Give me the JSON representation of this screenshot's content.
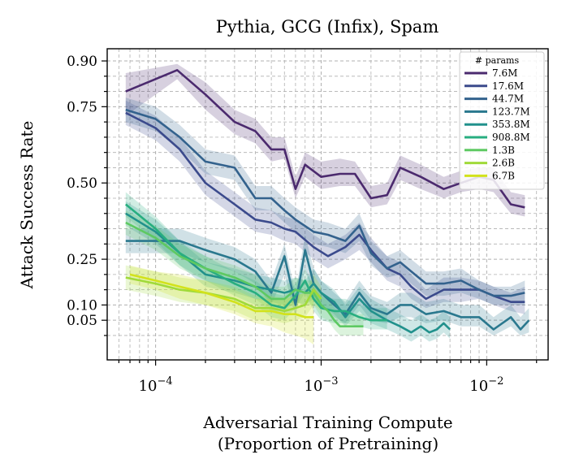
{
  "chart_data": {
    "type": "line",
    "title": "Pythia, GCG (Infix), Spam",
    "xlabel": "Adversarial Training Compute",
    "xlabel2": "(Proportion of Pretraining)",
    "ylabel": "Attack Success Rate",
    "xscale": "log",
    "xlim": [
      5.1e-05,
      0.0235
    ],
    "ylim": [
      -0.08,
      0.94
    ],
    "x_ticks": [
      {
        "value": 0.0001,
        "base": "10",
        "exp": "−4"
      },
      {
        "value": 0.001,
        "base": "10",
        "exp": "−3"
      },
      {
        "value": 0.01,
        "base": "10",
        "exp": "−2"
      }
    ],
    "y_ticks": [
      {
        "value": 0.05,
        "label": "0.05"
      },
      {
        "value": 0.1,
        "label": "0.10"
      },
      {
        "value": 0.25,
        "label": "0.25"
      },
      {
        "value": 0.5,
        "label": "0.50"
      },
      {
        "value": 0.75,
        "label": "0.75"
      },
      {
        "value": 0.9,
        "label": "0.90"
      }
    ],
    "grid": true,
    "legend": {
      "title": "# params",
      "position": "top-right"
    },
    "series": [
      {
        "name": "7.6M",
        "color": "#4b2a6e",
        "x": [
          6.6e-05,
          0.000135,
          0.0002,
          0.0003,
          0.0004,
          0.0005,
          0.0006,
          0.0007,
          0.0008,
          0.001,
          0.0013,
          0.0016,
          0.002,
          0.0025,
          0.003,
          0.004,
          0.0055,
          0.007,
          0.009,
          0.011,
          0.014,
          0.017
        ],
        "y": [
          0.8,
          0.87,
          0.79,
          0.7,
          0.67,
          0.61,
          0.61,
          0.48,
          0.56,
          0.52,
          0.53,
          0.53,
          0.45,
          0.46,
          0.55,
          0.52,
          0.48,
          0.5,
          0.52,
          0.51,
          0.43,
          0.42
        ],
        "lo": [
          0.72,
          0.84,
          0.74,
          0.66,
          0.63,
          0.57,
          0.58,
          0.45,
          0.52,
          0.48,
          0.49,
          0.49,
          0.42,
          0.43,
          0.51,
          0.48,
          0.45,
          0.47,
          0.48,
          0.47,
          0.4,
          0.39
        ],
        "hi": [
          0.86,
          0.89,
          0.83,
          0.74,
          0.71,
          0.65,
          0.65,
          0.52,
          0.6,
          0.57,
          0.58,
          0.57,
          0.49,
          0.5,
          0.59,
          0.56,
          0.52,
          0.54,
          0.55,
          0.55,
          0.47,
          0.46
        ]
      },
      {
        "name": "17.6M",
        "color": "#3b4a8c",
        "x": [
          6.6e-05,
          0.0001,
          0.00014,
          0.0002,
          0.0003,
          0.0004,
          0.0005,
          0.0006,
          0.0007,
          0.0009,
          0.0011,
          0.0014,
          0.0017,
          0.002,
          0.0025,
          0.003,
          0.0035,
          0.0043,
          0.0055,
          0.007,
          0.009,
          0.011,
          0.014,
          0.017
        ],
        "y": [
          0.73,
          0.68,
          0.61,
          0.5,
          0.43,
          0.38,
          0.37,
          0.35,
          0.34,
          0.29,
          0.26,
          0.29,
          0.33,
          0.28,
          0.22,
          0.2,
          0.16,
          0.12,
          0.15,
          0.15,
          0.15,
          0.13,
          0.11,
          0.11
        ],
        "lo": [
          0.69,
          0.64,
          0.57,
          0.46,
          0.39,
          0.34,
          0.33,
          0.31,
          0.3,
          0.25,
          0.22,
          0.25,
          0.28,
          0.24,
          0.18,
          0.16,
          0.12,
          0.09,
          0.11,
          0.11,
          0.12,
          0.1,
          0.08,
          0.07
        ],
        "hi": [
          0.77,
          0.72,
          0.65,
          0.54,
          0.47,
          0.42,
          0.41,
          0.39,
          0.38,
          0.33,
          0.3,
          0.33,
          0.37,
          0.32,
          0.26,
          0.24,
          0.2,
          0.15,
          0.19,
          0.19,
          0.18,
          0.16,
          0.14,
          0.16
        ]
      },
      {
        "name": "44.7M",
        "color": "#33628d",
        "x": [
          6.6e-05,
          0.0001,
          0.00014,
          0.0002,
          0.0003,
          0.0004,
          0.0005,
          0.0006,
          0.0007,
          0.0009,
          0.0011,
          0.0014,
          0.0017,
          0.002,
          0.0025,
          0.003,
          0.0035,
          0.0043,
          0.0055,
          0.007,
          0.009,
          0.011,
          0.014,
          0.017
        ],
        "y": [
          0.74,
          0.71,
          0.65,
          0.57,
          0.55,
          0.45,
          0.45,
          0.41,
          0.38,
          0.34,
          0.33,
          0.31,
          0.36,
          0.27,
          0.22,
          0.24,
          0.21,
          0.17,
          0.17,
          0.18,
          0.15,
          0.13,
          0.13,
          0.14
        ],
        "lo": [
          0.7,
          0.67,
          0.61,
          0.53,
          0.51,
          0.41,
          0.41,
          0.37,
          0.34,
          0.3,
          0.29,
          0.27,
          0.31,
          0.23,
          0.19,
          0.2,
          0.17,
          0.13,
          0.13,
          0.14,
          0.12,
          0.1,
          0.1,
          0.1
        ],
        "hi": [
          0.78,
          0.75,
          0.69,
          0.61,
          0.59,
          0.49,
          0.49,
          0.45,
          0.42,
          0.38,
          0.37,
          0.35,
          0.4,
          0.31,
          0.26,
          0.28,
          0.25,
          0.21,
          0.21,
          0.22,
          0.18,
          0.16,
          0.16,
          0.18
        ]
      },
      {
        "name": "123.7M",
        "color": "#2a788e",
        "x": [
          6.6e-05,
          0.0001,
          0.00014,
          0.0002,
          0.0003,
          0.0004,
          0.0005,
          0.0006,
          0.0007,
          0.0008,
          0.0009,
          0.001,
          0.0012,
          0.0014,
          0.0017,
          0.002,
          0.0025,
          0.003,
          0.0035,
          0.0043,
          0.0055,
          0.007,
          0.009,
          0.011,
          0.014,
          0.016,
          0.018
        ],
        "y": [
          0.31,
          0.31,
          0.31,
          0.28,
          0.25,
          0.21,
          0.14,
          0.26,
          0.1,
          0.28,
          0.17,
          0.14,
          0.1,
          0.07,
          0.14,
          0.09,
          0.07,
          0.1,
          0.1,
          0.07,
          0.08,
          0.06,
          0.06,
          0.02,
          0.06,
          0.02,
          0.05
        ],
        "lo": [
          0.27,
          0.27,
          0.27,
          0.24,
          0.21,
          0.17,
          0.1,
          0.2,
          0.06,
          0.22,
          0.12,
          0.1,
          0.06,
          0.04,
          0.1,
          0.05,
          0.04,
          0.06,
          0.06,
          0.04,
          0.05,
          0.03,
          0.03,
          0.0,
          0.03,
          0.0,
          0.01
        ],
        "hi": [
          0.35,
          0.35,
          0.35,
          0.32,
          0.29,
          0.25,
          0.18,
          0.3,
          0.14,
          0.33,
          0.22,
          0.18,
          0.14,
          0.11,
          0.18,
          0.13,
          0.11,
          0.14,
          0.14,
          0.11,
          0.12,
          0.1,
          0.1,
          0.06,
          0.1,
          0.06,
          0.09
        ]
      },
      {
        "name": "353.8M",
        "color": "#21918c",
        "x": [
          6.6e-05,
          0.0001,
          0.00014,
          0.0002,
          0.0003,
          0.0004,
          0.0005,
          0.0006,
          0.0007,
          0.0008,
          0.0009,
          0.001,
          0.0012,
          0.0014,
          0.0017,
          0.002,
          0.0025,
          0.003,
          0.0035,
          0.004,
          0.0045,
          0.005,
          0.0055,
          0.006
        ],
        "y": [
          0.4,
          0.34,
          0.27,
          0.2,
          0.18,
          0.16,
          0.15,
          0.14,
          0.15,
          0.14,
          0.17,
          0.14,
          0.11,
          0.06,
          0.12,
          0.08,
          0.05,
          0.03,
          0.01,
          0.03,
          0.01,
          0.02,
          0.04,
          0.02
        ],
        "lo": [
          0.36,
          0.3,
          0.23,
          0.16,
          0.14,
          0.12,
          0.11,
          0.1,
          0.11,
          0.1,
          0.12,
          0.1,
          0.07,
          0.03,
          0.08,
          0.04,
          0.02,
          0.0,
          -0.02,
          0.0,
          -0.02,
          -0.01,
          0.01,
          -0.01
        ],
        "hi": [
          0.44,
          0.38,
          0.31,
          0.24,
          0.22,
          0.2,
          0.19,
          0.18,
          0.19,
          0.18,
          0.22,
          0.18,
          0.15,
          0.1,
          0.16,
          0.12,
          0.09,
          0.07,
          0.05,
          0.07,
          0.05,
          0.06,
          0.08,
          0.06
        ]
      },
      {
        "name": "908.8M",
        "color": "#28ae80",
        "x": [
          6.6e-05,
          0.0001,
          0.00014,
          0.0002,
          0.0003,
          0.0004,
          0.0005,
          0.0006,
          0.0007,
          0.0008,
          0.0009,
          0.001,
          0.0012,
          0.0014,
          0.0017,
          0.002,
          0.0025
        ],
        "y": [
          0.43,
          0.35,
          0.27,
          0.22,
          0.17,
          0.14,
          0.1,
          0.09,
          0.13,
          0.18,
          0.12,
          0.09,
          0.08,
          0.08,
          0.06,
          0.05,
          0.05
        ],
        "lo": [
          0.39,
          0.31,
          0.23,
          0.18,
          0.13,
          0.1,
          0.06,
          0.05,
          0.09,
          0.14,
          0.08,
          0.05,
          0.04,
          0.04,
          0.03,
          0.02,
          0.02
        ],
        "hi": [
          0.47,
          0.39,
          0.31,
          0.26,
          0.21,
          0.18,
          0.14,
          0.13,
          0.17,
          0.22,
          0.16,
          0.13,
          0.12,
          0.12,
          0.1,
          0.09,
          0.09
        ]
      },
      {
        "name": "1.3B",
        "color": "#5ec962",
        "x": [
          6.6e-05,
          0.0001,
          0.00014,
          0.0002,
          0.0003,
          0.0004,
          0.0005,
          0.0006,
          0.0007,
          0.0008,
          0.0009,
          0.001,
          0.0011,
          0.0012,
          0.0013,
          0.0015,
          0.0018
        ],
        "y": [
          0.37,
          0.32,
          0.26,
          0.22,
          0.19,
          0.16,
          0.12,
          0.12,
          0.15,
          0.14,
          0.14,
          0.1,
          0.08,
          0.05,
          0.03,
          0.03,
          0.03
        ],
        "lo": [
          0.33,
          0.28,
          0.22,
          0.18,
          0.15,
          0.12,
          0.08,
          0.08,
          0.11,
          0.1,
          0.1,
          0.06,
          0.05,
          0.02,
          0.0,
          0.0,
          0.0
        ],
        "hi": [
          0.41,
          0.36,
          0.3,
          0.26,
          0.23,
          0.2,
          0.16,
          0.16,
          0.19,
          0.18,
          0.18,
          0.14,
          0.12,
          0.09,
          0.07,
          0.07,
          0.07
        ]
      },
      {
        "name": "2.6B",
        "color": "#a0da39",
        "x": [
          6.6e-05,
          0.0001,
          0.00014,
          0.0002,
          0.0003,
          0.0004,
          0.0005,
          0.0006,
          0.0007,
          0.0008,
          0.0009,
          0.001
        ],
        "y": [
          0.19,
          0.17,
          0.15,
          0.14,
          0.12,
          0.09,
          0.09,
          0.08,
          0.09,
          0.1,
          0.15,
          0.12
        ],
        "lo": [
          0.15,
          0.13,
          0.11,
          0.1,
          0.08,
          0.05,
          0.05,
          0.04,
          0.05,
          0.06,
          0.1,
          0.08
        ],
        "hi": [
          0.23,
          0.21,
          0.19,
          0.18,
          0.16,
          0.13,
          0.13,
          0.12,
          0.13,
          0.14,
          0.2,
          0.16
        ]
      },
      {
        "name": "6.7B",
        "color": "#d2e21b",
        "x": [
          7e-05,
          0.0001,
          0.00014,
          0.0002,
          0.0003,
          0.0004,
          0.0005,
          0.0006,
          0.0007,
          0.0008,
          0.0009
        ],
        "y": [
          0.2,
          0.18,
          0.16,
          0.14,
          0.11,
          0.08,
          0.08,
          0.07,
          0.07,
          0.06,
          0.06
        ],
        "lo": [
          0.17,
          0.15,
          0.12,
          0.1,
          0.07,
          0.04,
          0.03,
          0.01,
          0.0,
          -0.01,
          -0.03
        ],
        "hi": [
          0.23,
          0.21,
          0.2,
          0.18,
          0.15,
          0.12,
          0.12,
          0.12,
          0.13,
          0.14,
          0.15
        ]
      }
    ]
  }
}
